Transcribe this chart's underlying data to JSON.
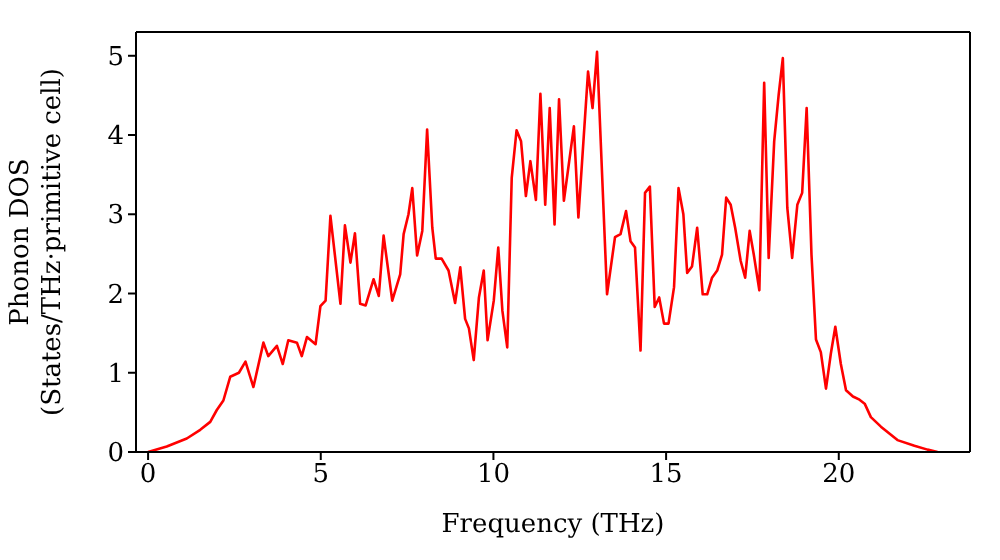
{
  "chart_data": {
    "type": "line",
    "xlabel": "Frequency (THz)",
    "ylabel": "Phonon DOS\n(States/THz·primitive cell)",
    "xlim": [
      -0.35,
      23.8
    ],
    "ylim": [
      0,
      5.3
    ],
    "xticks": [
      0,
      5,
      10,
      15,
      20
    ],
    "yticks": [
      0,
      1,
      2,
      3,
      4,
      5
    ],
    "grid": false,
    "legend": false,
    "marker": "none",
    "line_style": "solid",
    "x": [
      0,
      0.54,
      1.12,
      1.51,
      1.8,
      1.99,
      2.18,
      2.38,
      2.63,
      2.82,
      3.05,
      3.34,
      3.48,
      3.73,
      3.9,
      4.06,
      4.31,
      4.45,
      4.6,
      4.85,
      4.99,
      5.14,
      5.28,
      5.57,
      5.7,
      5.86,
      5.99,
      6.14,
      6.3,
      6.53,
      6.68,
      6.82,
      7.07,
      7.3,
      7.4,
      7.54,
      7.65,
      7.79,
      7.94,
      8.08,
      8.23,
      8.33,
      8.5,
      8.7,
      8.89,
      9.04,
      9.18,
      9.29,
      9.43,
      9.58,
      9.72,
      9.83,
      10.01,
      10.14,
      10.26,
      10.4,
      10.53,
      10.67,
      10.8,
      10.94,
      11.07,
      11.23,
      11.36,
      11.5,
      11.63,
      11.77,
      11.9,
      12.04,
      12.33,
      12.46,
      12.74,
      12.87,
      13,
      13.29,
      13.52,
      13.68,
      13.84,
      13.97,
      14.1,
      14.26,
      14.39,
      14.53,
      14.67,
      14.8,
      14.94,
      15.07,
      15.23,
      15.36,
      15.5,
      15.61,
      15.75,
      15.9,
      16.06,
      16.19,
      16.33,
      16.48,
      16.62,
      16.74,
      16.87,
      17,
      17.16,
      17.29,
      17.42,
      17.54,
      17.7,
      17.84,
      17.97,
      18.13,
      18.26,
      18.38,
      18.51,
      18.65,
      18.8,
      18.94,
      19.07,
      19.21,
      19.34,
      19.48,
      19.63,
      19.77,
      19.9,
      20.06,
      20.21,
      20.41,
      20.6,
      20.75,
      20.93,
      21.22,
      21.7,
      22.19,
      22.57,
      22.86
    ],
    "series": [
      {
        "color": "#ff0000",
        "values": [
          0,
          0.07,
          0.17,
          0.28,
          0.38,
          0.53,
          0.65,
          0.95,
          1,
          1.14,
          0.82,
          1.38,
          1.21,
          1.34,
          1.11,
          1.41,
          1.38,
          1.21,
          1.45,
          1.36,
          1.84,
          1.91,
          2.98,
          1.87,
          2.86,
          2.39,
          2.76,
          1.87,
          1.85,
          2.18,
          1.97,
          2.73,
          1.91,
          2.24,
          2.75,
          3,
          3.33,
          2.48,
          2.79,
          4.07,
          2.83,
          2.44,
          2.44,
          2.29,
          1.88,
          2.33,
          1.68,
          1.56,
          1.16,
          1.95,
          2.29,
          1.41,
          1.91,
          2.58,
          1.78,
          1.32,
          3.46,
          4.06,
          3.92,
          3.23,
          3.67,
          3.18,
          4.52,
          3.12,
          4.34,
          2.87,
          4.45,
          3.17,
          4.11,
          2.96,
          4.8,
          4.34,
          5.05,
          1.99,
          2.71,
          2.75,
          3.04,
          2.66,
          2.58,
          1.28,
          3.27,
          3.35,
          1.83,
          1.95,
          1.62,
          1.62,
          2.08,
          3.33,
          3,
          2.26,
          2.34,
          2.83,
          1.99,
          1.99,
          2.2,
          2.29,
          2.49,
          3.21,
          3.12,
          2.83,
          2.41,
          2.2,
          2.79,
          2.49,
          2.04,
          4.66,
          2.45,
          3.92,
          4.51,
          4.97,
          3.08,
          2.45,
          3.12,
          3.27,
          4.34,
          2.49,
          1.42,
          1.26,
          0.8,
          1.24,
          1.58,
          1.11,
          0.78,
          0.7,
          0.66,
          0.61,
          0.44,
          0.32,
          0.15,
          0.08,
          0.03,
          0
        ]
      }
    ]
  }
}
